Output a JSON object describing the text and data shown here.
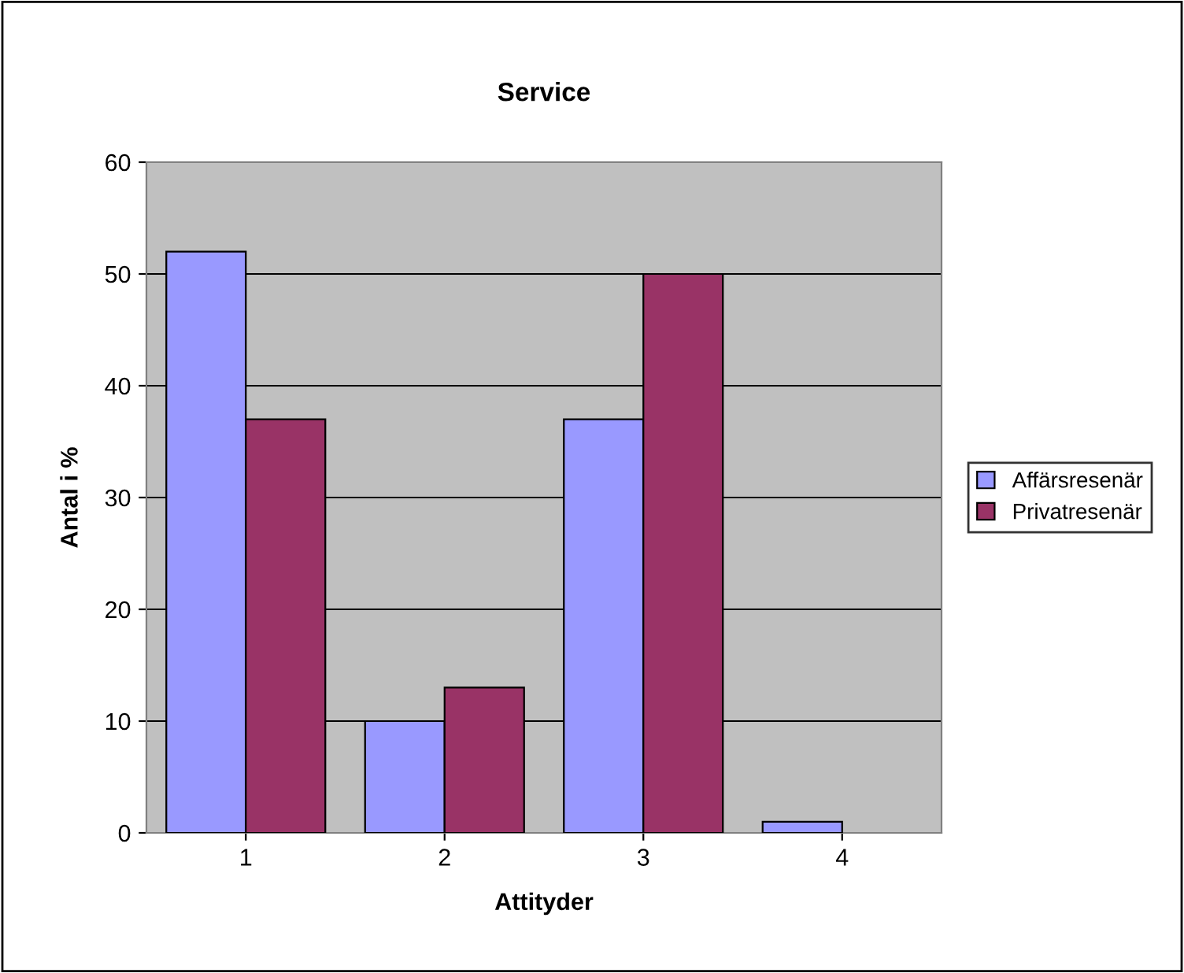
{
  "chart_data": {
    "type": "bar",
    "title": "Service",
    "xlabel": "Attityder",
    "ylabel": "Antal i %",
    "categories": [
      "1",
      "2",
      "3",
      "4"
    ],
    "series": [
      {
        "name": "Affärsresenär",
        "color": "#9999ff",
        "values": [
          52,
          10,
          37,
          1
        ]
      },
      {
        "name": "Privatresenär",
        "color": "#993366",
        "values": [
          37,
          13,
          50,
          null
        ]
      }
    ],
    "ylim": [
      0,
      60
    ],
    "yticks": [
      0,
      10,
      20,
      30,
      40,
      50,
      60
    ],
    "grid": "y",
    "legend": "right"
  }
}
